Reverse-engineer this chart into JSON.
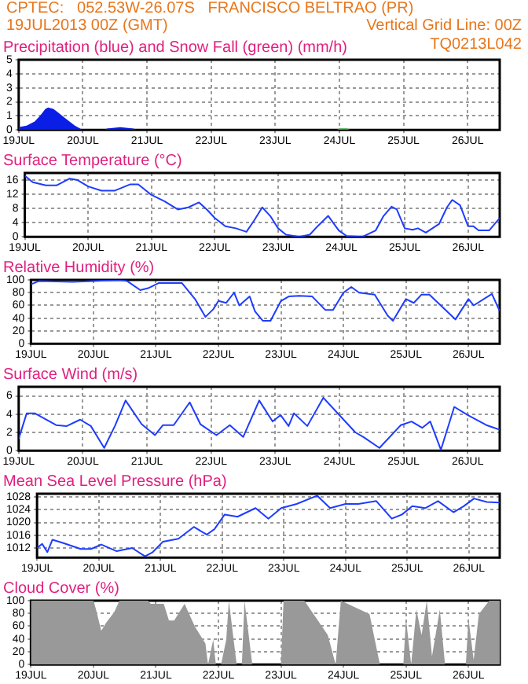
{
  "chart_data": [
    {
      "type": "area",
      "title": "Precipitation (blue) and Snow Fall (green) (mm/h)",
      "annotations": [
        "CPTEC:   052.53W-26.07S   FRANCISCO BELTRAO (PR)",
        "19JUL2013 00Z (GMT)",
        "Vertical Grid Line: 00Z",
        "TQ0213L042"
      ],
      "series": [
        {
          "color": "#0a1ee6",
          "x": [
            "2013-07-19T00:00",
            "2013-07-19T03:00",
            "2013-07-19T06:00",
            "2013-07-19T08:00",
            "2013-07-19T10:00",
            "2013-07-19T11:00",
            "2013-07-19T13:00",
            "2013-07-19T15:00",
            "2013-07-19T17:00",
            "2013-07-19T19:00",
            "2013-07-19T21:00",
            "2013-07-19T23:00",
            "2013-07-20T00:00",
            "2013-07-20T08:00",
            "2013-07-20T09:00",
            "2013-07-20T14:00",
            "2013-07-20T19:00",
            "2013-07-20T20:00",
            "2013-07-26T12:00"
          ],
          "values": [
            0.2,
            0.3,
            0.6,
            1,
            1.5,
            1.6,
            1.5,
            1.2,
            0.9,
            0.6,
            0.3,
            0.1,
            0,
            0,
            0.1,
            0.2,
            0.1,
            0,
            0
          ]
        },
        {
          "color": "#10c010",
          "x": [
            "2013-07-23T23:00",
            "2013-07-24T00:00",
            "2013-07-24T03:00",
            "2013-07-24T04:00"
          ],
          "values": [
            0,
            0.1,
            0.1,
            0
          ]
        }
      ],
      "xlim": [
        "2013-07-19",
        "2013-07-26T12:00"
      ],
      "xticks": [
        {
          "value": "2013-07-19",
          "label": "19JUL"
        },
        {
          "value": "2013-07-20",
          "label": "20JUL"
        },
        {
          "value": "2013-07-21",
          "label": "21JUL"
        },
        {
          "value": "2013-07-22",
          "label": "22JUL"
        },
        {
          "value": "2013-07-23",
          "label": "23JUL"
        },
        {
          "value": "2013-07-24",
          "label": "24JUL"
        },
        {
          "value": "2013-07-25",
          "label": "25JUL"
        },
        {
          "value": "2013-07-26",
          "label": "26JUL"
        }
      ],
      "ylim": [
        0,
        5
      ],
      "yticks": [
        0,
        1,
        2,
        3,
        4,
        5
      ],
      "grid": true
    },
    {
      "type": "line",
      "title": "Surface Temperature (°C)",
      "series": [
        {
          "color": "#1e3cff",
          "x": [
            "2013-07-19T00:00",
            "2013-07-19T03:00",
            "2013-07-19T08:00",
            "2013-07-19T12:00",
            "2013-07-19T17:00",
            "2013-07-19T20:00",
            "2013-07-20T00:00",
            "2013-07-20T05:00",
            "2013-07-20T10:00",
            "2013-07-20T16:00",
            "2013-07-20T19:00",
            "2013-07-21T00:00",
            "2013-07-21T05:00",
            "2013-07-21T10:00",
            "2013-07-21T14:00",
            "2013-07-21T18:00",
            "2013-07-21T21:00",
            "2013-07-22T00:00",
            "2013-07-22T04:00",
            "2013-07-22T08:00",
            "2013-07-22T12:00",
            "2013-07-22T15:00",
            "2013-07-22T18:00",
            "2013-07-22T21:00",
            "2013-07-23T00:00",
            "2013-07-23T03:00",
            "2013-07-23T08:00",
            "2013-07-23T12:00",
            "2013-07-23T15:00",
            "2013-07-23T19:00",
            "2013-07-23T23:00",
            "2013-07-24T02:00",
            "2013-07-24T08:00",
            "2013-07-24T13:00",
            "2013-07-24T16:00",
            "2013-07-24T19:00",
            "2013-07-24T21:00",
            "2013-07-25T00:00",
            "2013-07-25T03:00",
            "2013-07-25T05:00",
            "2013-07-25T08:00",
            "2013-07-25T13:00",
            "2013-07-25T16:00",
            "2013-07-25T18:00",
            "2013-07-25T21:00",
            "2013-07-26T00:00",
            "2013-07-26T02:00",
            "2013-07-26T04:00",
            "2013-07-26T08:00",
            "2013-07-26T12:00"
          ],
          "values": [
            17.2,
            15.4,
            14.5,
            14.5,
            16.4,
            16,
            14.2,
            13,
            13,
            14.8,
            14.8,
            11.8,
            10,
            7.7,
            8.3,
            9.7,
            7.7,
            5.3,
            3,
            2.4,
            1.4,
            4.7,
            8.3,
            5.9,
            2.4,
            0.6,
            0,
            0.6,
            3,
            5.9,
            1.8,
            0.2,
            0,
            1.8,
            5.9,
            8.5,
            7.7,
            2.4,
            2,
            2.4,
            1.2,
            3.6,
            8.3,
            10.4,
            8.9,
            3,
            3,
            1.8,
            1.8,
            5.3
          ]
        }
      ],
      "xlim": [
        "2013-07-19",
        "2013-07-26T12:00"
      ],
      "xticks": [
        {
          "value": "2013-07-19",
          "label": "19JUL"
        },
        {
          "value": "2013-07-20",
          "label": "20JUL"
        },
        {
          "value": "2013-07-21",
          "label": "21JUL"
        },
        {
          "value": "2013-07-22",
          "label": "22JUL"
        },
        {
          "value": "2013-07-23",
          "label": "23JUL"
        },
        {
          "value": "2013-07-24",
          "label": "24JUL"
        },
        {
          "value": "2013-07-25",
          "label": "25JUL"
        },
        {
          "value": "2013-07-26",
          "label": "26JUL"
        }
      ],
      "ylim": [
        0,
        18
      ],
      "yticks": [
        0,
        4,
        8,
        12,
        16
      ],
      "grid": true
    },
    {
      "type": "line",
      "title": "Relative Humidity (%)",
      "series": [
        {
          "color": "#1e3cff",
          "x": [
            "2013-07-19T00:00",
            "2013-07-19T03:00",
            "2013-07-19T16:00",
            "2013-07-20T00:00",
            "2013-07-20T10:00",
            "2013-07-20T13:00",
            "2013-07-20T18:00",
            "2013-07-20T21:00",
            "2013-07-21T01:00",
            "2013-07-21T10:00",
            "2013-07-21T15:00",
            "2013-07-21T19:00",
            "2013-07-21T22:00",
            "2013-07-22T00:00",
            "2013-07-22T03:00",
            "2013-07-22T06:00",
            "2013-07-22T08:00",
            "2013-07-22T12:00",
            "2013-07-22T14:00",
            "2013-07-22T17:00",
            "2013-07-22T20:00",
            "2013-07-23T00:00",
            "2013-07-23T03:00",
            "2013-07-23T07:00",
            "2013-07-23T12:00",
            "2013-07-23T17:00",
            "2013-07-23T20:00",
            "2013-07-24T00:00",
            "2013-07-24T03:00",
            "2013-07-24T06:00",
            "2013-07-24T12:00",
            "2013-07-24T17:00",
            "2013-07-24T19:00",
            "2013-07-25T00:00",
            "2013-07-25T03:00",
            "2013-07-25T06:00",
            "2013-07-25T09:00",
            "2013-07-25T19:00",
            "2013-07-26T00:00",
            "2013-07-26T02:00",
            "2013-07-26T09:00",
            "2013-07-26T12:00"
          ],
          "values": [
            93,
            98,
            97,
            98,
            100,
            98,
            84,
            87,
            95,
            95,
            70,
            42,
            54,
            67,
            64,
            80,
            60,
            74,
            51,
            36,
            36,
            67,
            74,
            75,
            74,
            53,
            53,
            80,
            89,
            80,
            77,
            44,
            36,
            70,
            64,
            77,
            77,
            38,
            70,
            60,
            78,
            51
          ]
        }
      ],
      "xlim": [
        "2013-07-19",
        "2013-07-26T12:00"
      ],
      "xticks": [
        {
          "value": "2013-07-19",
          "label": "19JUL"
        },
        {
          "value": "2013-07-20",
          "label": "20JUL"
        },
        {
          "value": "2013-07-21",
          "label": "21JUL"
        },
        {
          "value": "2013-07-22",
          "label": "22JUL"
        },
        {
          "value": "2013-07-23",
          "label": "23JUL"
        },
        {
          "value": "2013-07-24",
          "label": "24JUL"
        },
        {
          "value": "2013-07-25",
          "label": "25JUL"
        },
        {
          "value": "2013-07-26",
          "label": "26JUL"
        }
      ],
      "ylim": [
        0,
        100
      ],
      "yticks": [
        0,
        20,
        40,
        60,
        80,
        100
      ],
      "grid": true
    },
    {
      "type": "line",
      "title": "Surface Wind (m/s)",
      "series": [
        {
          "color": "#1e3cff",
          "x": [
            "2013-07-19T00:00",
            "2013-07-19T03:00",
            "2013-07-19T06:00",
            "2013-07-19T14:00",
            "2013-07-19T18:00",
            "2013-07-19T23:00",
            "2013-07-20T03:00",
            "2013-07-20T08:00",
            "2013-07-20T12:00",
            "2013-07-20T16:00",
            "2013-07-20T22:00",
            "2013-07-21T03:00",
            "2013-07-21T06:00",
            "2013-07-21T10:00",
            "2013-07-21T16:00",
            "2013-07-21T20:00",
            "2013-07-22T02:00",
            "2013-07-22T07:00",
            "2013-07-22T12:00",
            "2013-07-22T18:00",
            "2013-07-22T23:00",
            "2013-07-23T02:00",
            "2013-07-23T05:00",
            "2013-07-23T07:00",
            "2013-07-23T12:00",
            "2013-07-23T18:00",
            "2013-07-24T00:00",
            "2013-07-24T06:00",
            "2013-07-24T09:00",
            "2013-07-24T15:00",
            "2013-07-24T23:00",
            "2013-07-25T03:00",
            "2013-07-25T07:00",
            "2013-07-25T10:00",
            "2013-07-25T14:00",
            "2013-07-25T19:00",
            "2013-07-26T00:00",
            "2013-07-26T07:00",
            "2013-07-26T12:00"
          ],
          "values": [
            1.3,
            4.1,
            4.1,
            2.8,
            2.7,
            3.4,
            2.7,
            0.3,
            2.7,
            5.5,
            2.9,
            1.7,
            2.8,
            2.8,
            5.3,
            2.9,
            1.7,
            2.8,
            1.5,
            5.5,
            3.2,
            3.9,
            2.7,
            4.1,
            2.7,
            5.8,
            3.9,
            2,
            1.5,
            0.3,
            2.8,
            3.2,
            2.5,
            3.2,
            0.1,
            4.8,
            3.9,
            2.8,
            2.3
          ]
        }
      ],
      "xlim": [
        "2013-07-19",
        "2013-07-26T12:00"
      ],
      "xticks": [
        {
          "value": "2013-07-19",
          "label": "19JUL"
        },
        {
          "value": "2013-07-20",
          "label": "20JUL"
        },
        {
          "value": "2013-07-21",
          "label": "21JUL"
        },
        {
          "value": "2013-07-22",
          "label": "22JUL"
        },
        {
          "value": "2013-07-23",
          "label": "23JUL"
        },
        {
          "value": "2013-07-24",
          "label": "24JUL"
        },
        {
          "value": "2013-07-25",
          "label": "25JUL"
        },
        {
          "value": "2013-07-26",
          "label": "26JUL"
        }
      ],
      "ylim": [
        0,
        7
      ],
      "yticks": [
        0,
        2,
        4,
        6
      ],
      "grid": true
    },
    {
      "type": "line",
      "title": "Mean Sea Level Pressure (hPa)",
      "series": [
        {
          "color": "#1e3cff",
          "x": [
            "2013-07-19T00:00",
            "2013-07-19T02:00",
            "2013-07-19T04:00",
            "2013-07-19T06:00",
            "2013-07-19T10:00",
            "2013-07-19T17:00",
            "2013-07-19T21:00",
            "2013-07-20T01:00",
            "2013-07-20T07:00",
            "2013-07-20T13:00",
            "2013-07-20T18:00",
            "2013-07-20T21:00",
            "2013-07-21T01:00",
            "2013-07-21T07:00",
            "2013-07-21T13:00",
            "2013-07-21T18:00",
            "2013-07-21T21:00",
            "2013-07-22T01:00",
            "2013-07-22T06:00",
            "2013-07-22T13:00",
            "2013-07-22T18:00",
            "2013-07-22T23:00",
            "2013-07-23T05:00",
            "2013-07-23T13:00",
            "2013-07-23T18:00",
            "2013-07-24T00:00",
            "2013-07-24T05:00",
            "2013-07-24T12:00",
            "2013-07-24T18:00",
            "2013-07-24T22:00",
            "2013-07-25T02:00",
            "2013-07-25T07:00",
            "2013-07-25T12:00",
            "2013-07-25T18:00",
            "2013-07-25T22:00",
            "2013-07-26T02:00",
            "2013-07-26T07:00",
            "2013-07-26T12:00"
          ],
          "values": [
            1012,
            1013.3,
            1010.7,
            1014.6,
            1013.6,
            1011.7,
            1011.7,
            1013.1,
            1011,
            1012,
            1009.4,
            1010.7,
            1014,
            1014.9,
            1018.6,
            1016.2,
            1017.9,
            1022.5,
            1021.8,
            1024.5,
            1021.2,
            1024.5,
            1025.8,
            1028.4,
            1024.5,
            1025.8,
            1025.8,
            1026.7,
            1021.2,
            1022.5,
            1025.1,
            1024.5,
            1026.7,
            1023.2,
            1025.1,
            1027.5,
            1026.4,
            1026.2
          ]
        }
      ],
      "xlim": [
        "2013-07-19",
        "2013-07-26T12:00"
      ],
      "xticks": [
        {
          "value": "2013-07-19",
          "label": "19JUL"
        },
        {
          "value": "2013-07-20",
          "label": "20JUL"
        },
        {
          "value": "2013-07-21",
          "label": "21JUL"
        },
        {
          "value": "2013-07-22",
          "label": "22JUL"
        },
        {
          "value": "2013-07-23",
          "label": "23JUL"
        },
        {
          "value": "2013-07-24",
          "label": "24JUL"
        },
        {
          "value": "2013-07-25",
          "label": "25JUL"
        },
        {
          "value": "2013-07-26",
          "label": "26JUL"
        }
      ],
      "ylim": [
        1009,
        1029
      ],
      "yticks": [
        1012,
        1016,
        1020,
        1024,
        1028
      ],
      "grid": true
    },
    {
      "type": "area",
      "title": "Cloud Cover (%)",
      "series": [
        {
          "color": "#999999",
          "x": [
            "2013-07-19T00:00",
            "2013-07-20T00:00",
            "2013-07-20T01:00",
            "2013-07-20T03:00",
            "2013-07-20T05:00",
            "2013-07-20T08:00",
            "2013-07-20T10:00",
            "2013-07-20T21:00",
            "2013-07-20T22:00",
            "2013-07-21T03:00",
            "2013-07-21T05:00",
            "2013-07-21T07:00",
            "2013-07-21T11:00",
            "2013-07-21T15:00",
            "2013-07-21T19:00",
            "2013-07-21T20:00",
            "2013-07-21T22:00",
            "2013-07-21T23:00",
            "2013-07-22T01:00",
            "2013-07-22T03:00",
            "2013-07-22T04:00",
            "2013-07-22T07:00",
            "2013-07-22T09:00",
            "2013-07-22T10:00",
            "2013-07-22T13:00",
            "2013-07-23T00:00",
            "2013-07-23T01:00",
            "2013-07-23T09:00",
            "2013-07-23T18:00",
            "2013-07-23T21:00",
            "2013-07-23T23:00",
            "2013-07-24T10:00",
            "2013-07-24T14:00",
            "2013-07-24T23:00",
            "2013-07-25T00:00",
            "2013-07-25T02:00",
            "2013-07-25T04:00",
            "2013-07-25T06:00",
            "2013-07-25T08:00",
            "2013-07-25T10:00",
            "2013-07-25T13:00",
            "2013-07-25T15:00",
            "2013-07-25T23:00",
            "2013-07-26T00:00",
            "2013-07-26T02:00",
            "2013-07-26T04:00",
            "2013-07-26T08:00",
            "2013-07-26T12:00"
          ],
          "values": [
            100,
            100,
            86,
            53,
            66,
            82,
            100,
            100,
            95,
            95,
            69,
            69,
            95,
            59,
            33,
            0,
            39,
            0,
            0,
            39,
            100,
            0,
            0,
            100,
            0,
            0,
            100,
            100,
            46,
            0,
            100,
            79,
            0,
            0,
            72,
            0,
            86,
            46,
            100,
            13,
            86,
            0,
            0,
            72,
            7,
            79,
            100,
            100
          ]
        }
      ],
      "xlim": [
        "2013-07-19",
        "2013-07-26T12:00"
      ],
      "xticks": [
        {
          "value": "2013-07-19",
          "label": "19JUL"
        },
        {
          "value": "2013-07-20",
          "label": "20JUL"
        },
        {
          "value": "2013-07-21",
          "label": "21JUL"
        },
        {
          "value": "2013-07-22",
          "label": "22JUL"
        },
        {
          "value": "2013-07-23",
          "label": "23JUL"
        },
        {
          "value": "2013-07-24",
          "label": "24JUL"
        },
        {
          "value": "2013-07-25",
          "label": "25JUL"
        },
        {
          "value": "2013-07-26",
          "label": "26JUL"
        }
      ],
      "ylim": [
        0,
        100
      ],
      "yticks": [
        0,
        20,
        40,
        60,
        80,
        100
      ],
      "grid": true
    }
  ]
}
